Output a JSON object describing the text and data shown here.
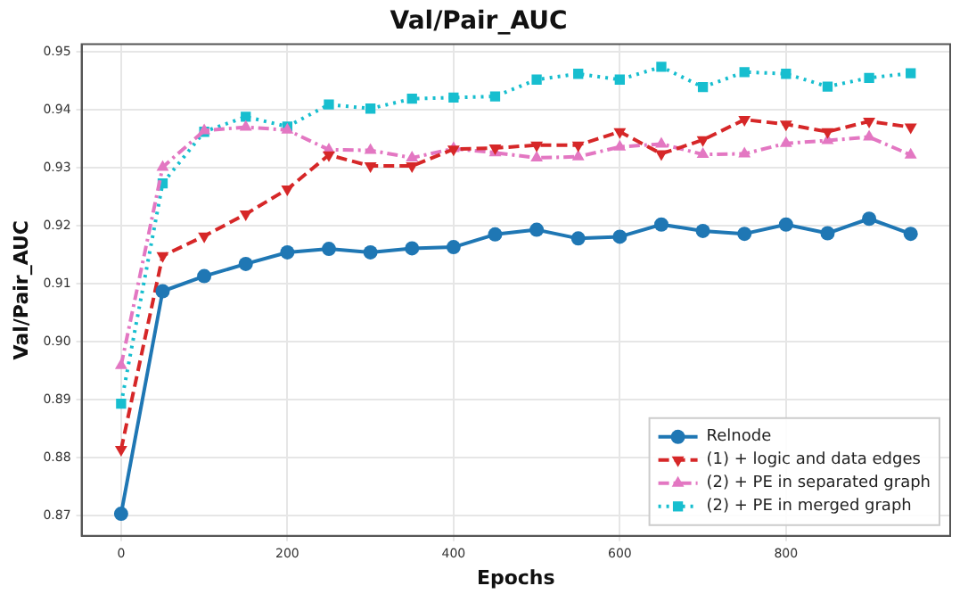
{
  "chart_data": {
    "type": "line",
    "title": "Val/Pair_AUC",
    "xlabel": "Epochs",
    "ylabel": "Val/Pair_AUC",
    "x": [
      0,
      50,
      100,
      150,
      200,
      250,
      300,
      350,
      400,
      450,
      500,
      550,
      600,
      650,
      700,
      750,
      800,
      850,
      900,
      950
    ],
    "series": [
      {
        "name": "Relnode",
        "color": "#1f77b4",
        "marker": "circle",
        "line_style": "solid",
        "values": [
          0.8703,
          0.9087,
          0.9113,
          0.9134,
          0.9154,
          0.916,
          0.9154,
          0.9161,
          0.9163,
          0.9185,
          0.9193,
          0.9178,
          0.9181,
          0.9202,
          0.9191,
          0.9186,
          0.9202,
          0.9187,
          0.9212,
          0.9186
        ]
      },
      {
        "name": "(1) + logic and data edges",
        "color": "#d62728",
        "marker": "triangle_down",
        "line_style": "dashed",
        "values": [
          0.8814,
          0.9148,
          0.9182,
          0.922,
          0.9263,
          0.9322,
          0.9303,
          0.9303,
          0.9332,
          0.9334,
          0.9339,
          0.9339,
          0.9362,
          0.9324,
          0.9348,
          0.9383,
          0.9375,
          0.9362,
          0.938,
          0.937
        ]
      },
      {
        "name": "(2) + PE in separated graph",
        "color": "#e377c2",
        "marker": "triangle",
        "line_style": "dashdot",
        "values": [
          0.8959,
          0.9301,
          0.9364,
          0.937,
          0.9365,
          0.9331,
          0.933,
          0.9317,
          0.9333,
          0.9326,
          0.9317,
          0.9319,
          0.9336,
          0.9341,
          0.9323,
          0.9324,
          0.9342,
          0.9347,
          0.9353,
          0.9322
        ]
      },
      {
        "name": "(2) + PE in merged graph",
        "color": "#17becf",
        "marker": "square",
        "line_style": "dotted",
        "values": [
          0.8893,
          0.9273,
          0.9362,
          0.9388,
          0.9371,
          0.9409,
          0.9402,
          0.9419,
          0.9421,
          0.9423,
          0.9452,
          0.9462,
          0.9452,
          0.9474,
          0.9439,
          0.9465,
          0.9462,
          0.944,
          0.9455,
          0.9463
        ]
      }
    ],
    "xlim": [
      -47.5,
      997.5
    ],
    "xticks": [
      0,
      200,
      400,
      600,
      800
    ],
    "ylim": [
      0.8665,
      0.9513
    ],
    "yticks": [
      0.87,
      0.88,
      0.89,
      {
        "value": 0.9,
        "label": "0.90"
      },
      0.91,
      0.92,
      0.93,
      0.94,
      0.95
    ],
    "grid": true,
    "legend": "bottom right"
  }
}
